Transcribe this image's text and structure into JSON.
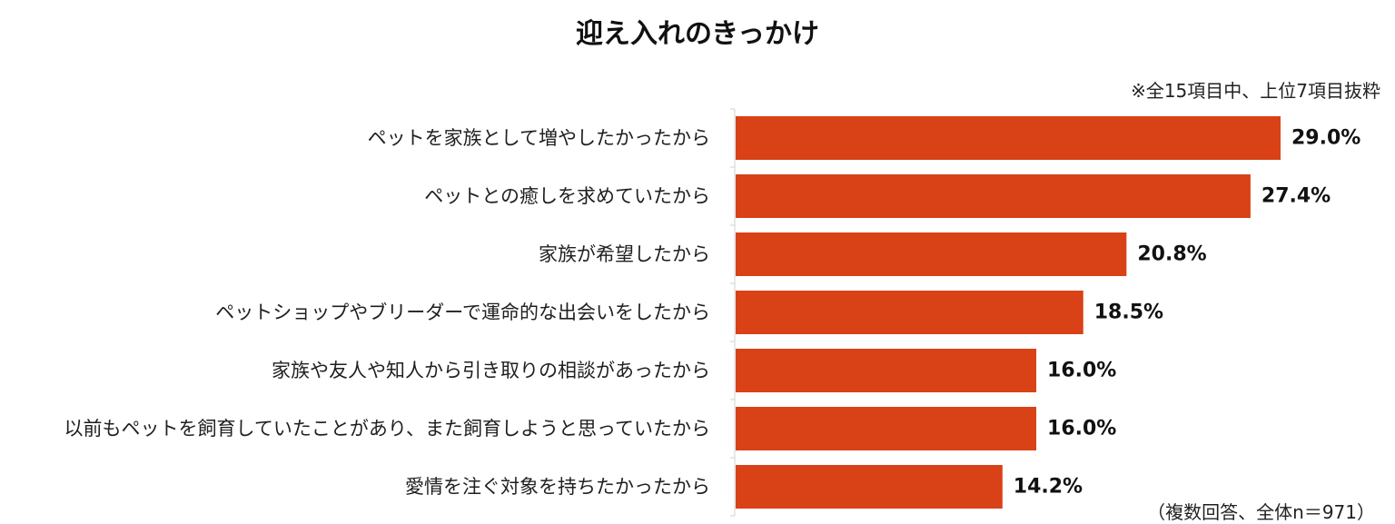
{
  "chart_data": {
    "type": "bar",
    "orientation": "horizontal",
    "title": "迎え入れのきっかけ",
    "note": "※全15項目中、上位7項目抜粋",
    "footnote": "（複数回答、全体n＝971）",
    "categories": [
      "ペットを家族として増やしたかったから",
      "ペットとの癒しを求めていたから",
      "家族が希望したから",
      "ペットショップやブリーダーで運命的な出会いをしたから",
      "家族や友人や知人から引き取りの相談があったから",
      "以前もペットを飼育していたことがあり、また飼育しようと思っていたから",
      "愛情を注ぐ対象を持ちたかったから"
    ],
    "values": [
      29.0,
      27.4,
      20.8,
      18.5,
      16.0,
      16.0,
      14.2
    ],
    "value_labels": [
      "29.0%",
      "27.4%",
      "20.8%",
      "18.5%",
      "16.0%",
      "16.0%",
      "14.2%"
    ],
    "unit": "%",
    "xlim": [
      0,
      30
    ],
    "grid": false,
    "legend": "none",
    "bar_color": "#D94117"
  }
}
